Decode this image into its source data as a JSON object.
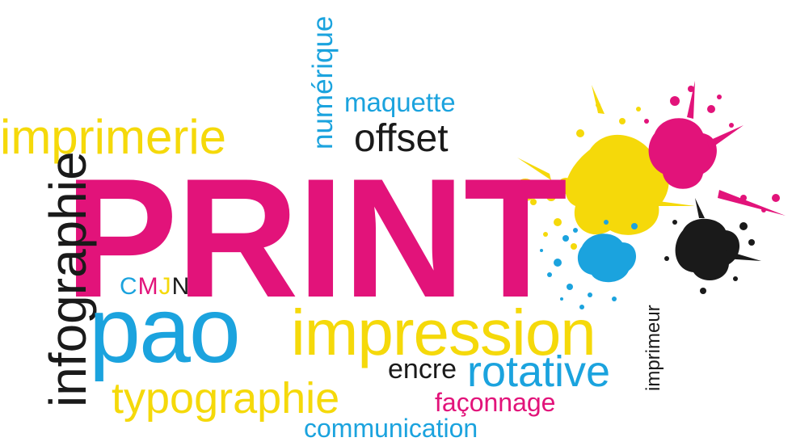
{
  "colors": {
    "magenta": "#E2137A",
    "yellow": "#F5D90A",
    "cyan": "#1BA3DE",
    "black": "#1A1A1A"
  },
  "words": {
    "print": "PRINT",
    "imprimerie": "imprimerie",
    "numerique": "numérique",
    "maquette": "maquette",
    "offset": "offset",
    "infographie": "infographie",
    "cmjn": {
      "c": "C",
      "m": "M",
      "j": "J",
      "n": "N"
    },
    "pao": "pao",
    "impression": "impression",
    "encre": "encre",
    "rotative": "rotative",
    "typographie": "typographie",
    "faconnage": "façonnage",
    "communication": "communication",
    "imprimeur": "imprimeur"
  }
}
